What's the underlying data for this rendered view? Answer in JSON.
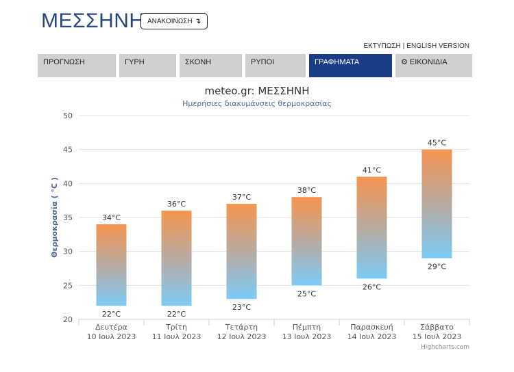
{
  "header": {
    "title": "ΜΕΣΣΗΝΗ",
    "announce_label": "ΑΝΑΚΟΙΝΩΣΗ",
    "announce_icon": "return-arrow-icon",
    "print_link": "ΕΚΤΥΠΩΣΗ",
    "separator": "|",
    "english_link": "ENGLISH VERSION"
  },
  "nav": {
    "tabs": [
      {
        "label": "ΠΡΟΓΝΩΣΗ",
        "active": false
      },
      {
        "label": "ΓΥΡΗ",
        "active": false
      },
      {
        "label": "ΣΚΟΝΗ",
        "active": false
      },
      {
        "label": "ΡΥΠΟΙ",
        "active": false
      },
      {
        "label": "ΓΡΑΦΗΜΑΤΑ",
        "active": true
      },
      {
        "label": "ΕΙΚΟΝΙΔΙΑ",
        "active": false,
        "icon": "gear-icon"
      }
    ],
    "active_color": "#1b3d87",
    "inactive_color": "#d0d0d0"
  },
  "chart_data": {
    "type": "columnrange",
    "title": "meteo.gr: ΜΕΣΣΗΝΗ",
    "subtitle": "Ημερήσιες διακυμάνσεις θερμοκρασίας",
    "ylabel": "Θερμοκρασία ( °C )",
    "xlabel": "",
    "ylim": [
      20,
      50
    ],
    "yticks": [
      20,
      25,
      30,
      35,
      40,
      45,
      50
    ],
    "grid": true,
    "legend": "none",
    "credit": "Highcharts.com",
    "unit": "°C",
    "categories": [
      [
        "Δευτέρα",
        "10 Ιουλ 2023"
      ],
      [
        "Τρίτη",
        "11 Ιουλ 2023"
      ],
      [
        "Τετάρτη",
        "12 Ιουλ 2023"
      ],
      [
        "Πέμπτη",
        "13 Ιουλ 2023"
      ],
      [
        "Παρασκευή",
        "14 Ιουλ 2023"
      ],
      [
        "Σάββατο",
        "15 Ιουλ 2023"
      ]
    ],
    "series": [
      {
        "low": [
          22,
          22,
          23,
          25,
          26,
          29
        ],
        "high": [
          34,
          36,
          37,
          38,
          41,
          45
        ]
      }
    ],
    "colors": {
      "warm": "#f5944f",
      "cool": "#7ccbf5",
      "title": "#333333",
      "subtitle": "#4a6a9a",
      "axis_title": "#4a6a9a"
    }
  }
}
